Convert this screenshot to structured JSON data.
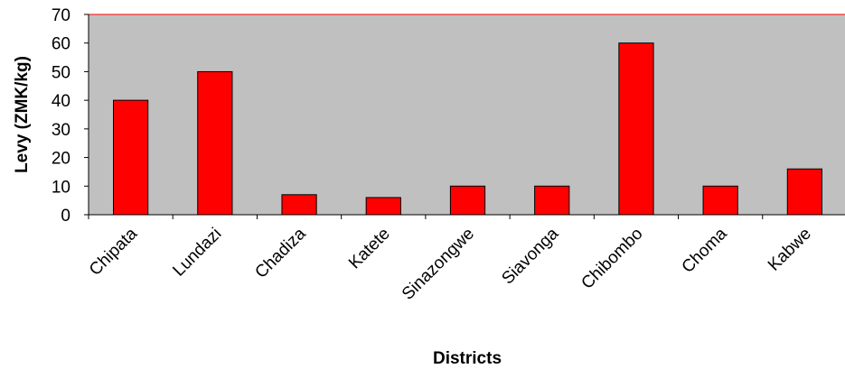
{
  "chart_data": {
    "type": "bar",
    "title": "",
    "xlabel": "Districts",
    "ylabel": "Levy (ZMK/kg)",
    "categories": [
      "Chipata",
      "Lundazi",
      "Chadiza",
      "Katete",
      "Sinazongwe",
      "Siavonga",
      "Chibombo",
      "Choma",
      "Kabwe"
    ],
    "values": [
      40,
      50,
      7,
      6,
      10,
      10,
      60,
      10,
      16
    ],
    "ylim": [
      0,
      70
    ],
    "yticks": [
      0,
      10,
      20,
      30,
      40,
      50,
      60,
      70
    ],
    "grid": false,
    "legend": "none",
    "colors": {
      "bar_fill": "#ff0000",
      "bar_stroke": "#000000",
      "plot_background": "#c0c0c0",
      "plot_border": "#ff0000"
    }
  }
}
